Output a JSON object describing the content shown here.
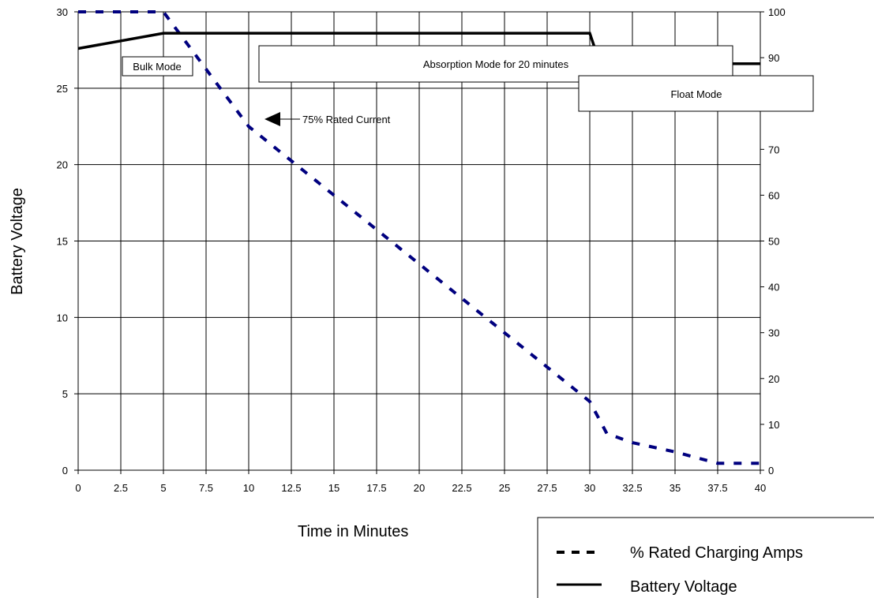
{
  "chart_data": {
    "type": "line",
    "xlabel": "Time in Minutes",
    "ylabel": "Battery Voltage",
    "xlim": [
      0,
      40
    ],
    "ylim": [
      0,
      30
    ],
    "y2lim": [
      0,
      100
    ],
    "x_ticks": [
      "0",
      "2.5",
      "5",
      "7.5",
      "10",
      "12.5",
      "15",
      "17.5",
      "20",
      "22.5",
      "25",
      "27.5",
      "30",
      "32.5",
      "35",
      "37.5",
      "40"
    ],
    "y_ticks": [
      "0",
      "5",
      "10",
      "15",
      "20",
      "25",
      "30"
    ],
    "y2_ticks": [
      "0",
      "10",
      "20",
      "30",
      "40",
      "50",
      "60",
      "70",
      "90",
      "100"
    ],
    "grid": true,
    "legend_position": "bottom-right",
    "series": [
      {
        "name": "% Rated Charging Amps",
        "axis": "right",
        "style": "dashed",
        "color": "#00007f",
        "x": [
          0,
          5,
          10,
          30,
          31,
          32.5,
          35,
          37.5,
          40
        ],
        "y": [
          100,
          100,
          75,
          15,
          8,
          6,
          4,
          1.5,
          1.5
        ]
      },
      {
        "name": "Battery Voltage",
        "axis": "left",
        "style": "solid",
        "color": "#000000",
        "x": [
          0,
          5,
          30,
          30.6,
          40
        ],
        "y": [
          27.6,
          28.6,
          28.6,
          26.6,
          26.6
        ]
      }
    ],
    "annotations": [
      {
        "text": "Bulk Mode"
      },
      {
        "text": "Absorption Mode for 20 minutes"
      },
      {
        "text": "Float Mode"
      },
      {
        "text": "75% Rated Current"
      }
    ]
  }
}
